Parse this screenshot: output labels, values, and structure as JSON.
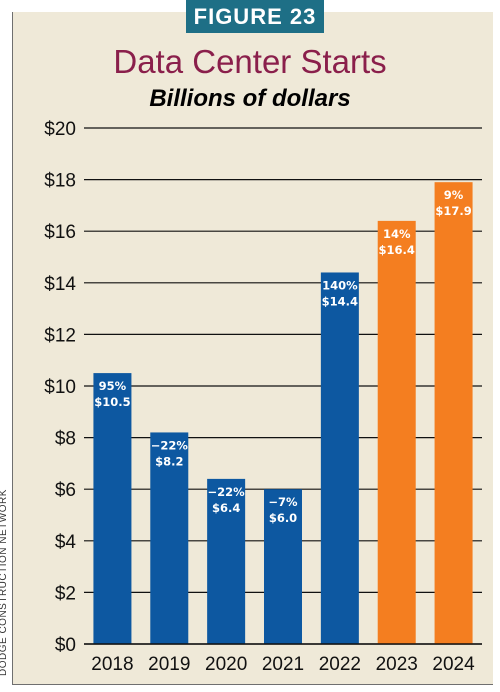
{
  "figure_label": "FIGURE 23",
  "source": "DODGE CONSTRUCTION NETWORK",
  "colors": {
    "actual": "#0d58a1",
    "forecast": "#f47e20",
    "title": "#8a1f4b",
    "badge": "#1e6f86",
    "panel": "#efe9d8"
  },
  "chart_data": {
    "type": "bar",
    "title": "Data Center Starts",
    "subtitle": "Billions of dollars",
    "xlabel": "",
    "ylabel": "",
    "categories": [
      "2018",
      "2019",
      "2020",
      "2021",
      "2022",
      "2023",
      "2024"
    ],
    "values": [
      10.5,
      8.2,
      6.4,
      6.0,
      14.4,
      16.4,
      17.9
    ],
    "value_labels": [
      "$10.5",
      "$8.2",
      "$6.4",
      "$6.0",
      "$14.4",
      "$16.4",
      "$17.9"
    ],
    "change_labels": [
      "95%",
      "−22%",
      "−22%",
      "−7%",
      "140%",
      "14%",
      "9%"
    ],
    "forecast": [
      false,
      false,
      false,
      false,
      false,
      true,
      true
    ],
    "ylim": [
      0,
      20
    ],
    "yticks": [
      0,
      2,
      4,
      6,
      8,
      10,
      12,
      14,
      16,
      18,
      20
    ],
    "ytick_labels": [
      "$0",
      "$2",
      "$4",
      "$6",
      "$8",
      "$10",
      "$12",
      "$14",
      "$16",
      "$18",
      "$20"
    ],
    "grid": true,
    "legend": "none"
  }
}
